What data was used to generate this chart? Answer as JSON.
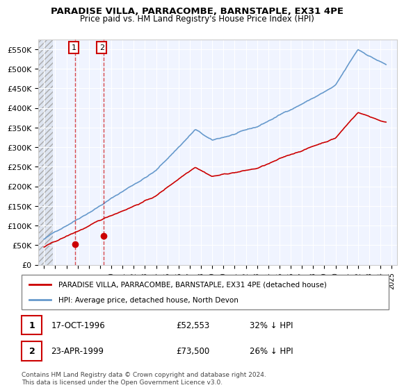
{
  "title": "PARADISE VILLA, PARRACOMBE, BARNSTAPLE, EX31 4PE",
  "subtitle": "Price paid vs. HM Land Registry's House Price Index (HPI)",
  "legend_line1": "PARADISE VILLA, PARRACOMBE, BARNSTAPLE, EX31 4PE (detached house)",
  "legend_line2": "HPI: Average price, detached house, North Devon",
  "table_rows": [
    {
      "num": "1",
      "date": "17-OCT-1996",
      "price": "£52,553",
      "pct": "32% ↓ HPI"
    },
    {
      "num": "2",
      "date": "23-APR-1999",
      "price": "£73,500",
      "pct": "26% ↓ HPI"
    }
  ],
  "footnote": "Contains HM Land Registry data © Crown copyright and database right 2024.\nThis data is licensed under the Open Government Licence v3.0.",
  "sale1_year": 1996.8,
  "sale1_price": 52553,
  "sale2_year": 1999.3,
  "sale2_price": 73500,
  "ylim": [
    0,
    575000
  ],
  "xlim_start": 1993.5,
  "xlim_end": 2025.5,
  "red_color": "#cc0000",
  "blue_color": "#6699cc",
  "background_color": "#f0f4ff"
}
